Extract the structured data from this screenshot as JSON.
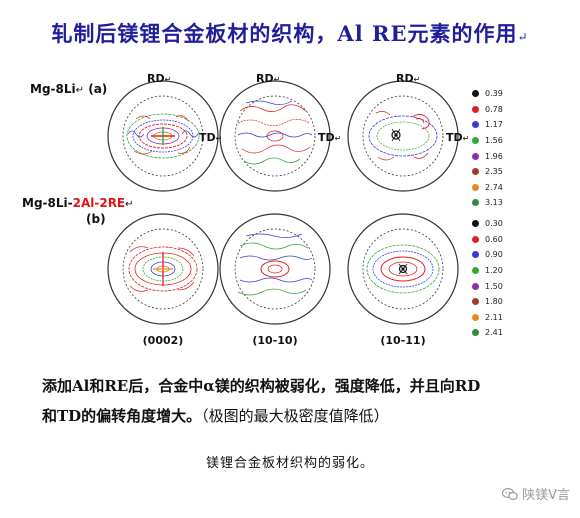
{
  "title": "轧制后镁锂合金板材的织构，Al RE元素的作用",
  "title_mark": "↵",
  "row_a": {
    "prefix": "Mg-8Li",
    "suffix": "(a)",
    "mark": "↵"
  },
  "row_b": {
    "prefix": "Mg-8Li-",
    "highlight": "2Al-2RE",
    "mark": "↵",
    "suffix": "(b)"
  },
  "rd_label": "RD",
  "td_label": "TD",
  "arrow_mark": "↵",
  "planes": [
    "(0002)",
    "(10-10)",
    "(10-11)"
  ],
  "legend_a": [
    {
      "value": "0.39",
      "color": "#111111"
    },
    {
      "value": "0.78",
      "color": "#e02020"
    },
    {
      "value": "1.17",
      "color": "#3a3ad8"
    },
    {
      "value": "1.56",
      "color": "#35a835"
    },
    {
      "value": "1.96",
      "color": "#8a2fa8"
    },
    {
      "value": "2.35",
      "color": "#a03a2a"
    },
    {
      "value": "2.74",
      "color": "#e08a20"
    },
    {
      "value": "3.13",
      "color": "#2e8a44"
    }
  ],
  "legend_b": [
    {
      "value": "0.30",
      "color": "#111111"
    },
    {
      "value": "0.60",
      "color": "#e02020"
    },
    {
      "value": "0.90",
      "color": "#3a3ad8"
    },
    {
      "value": "1.20",
      "color": "#35a835"
    },
    {
      "value": "1.50",
      "color": "#8a2fa8"
    },
    {
      "value": "1.80",
      "color": "#a03a2a"
    },
    {
      "value": "2.11",
      "color": "#e08a20"
    },
    {
      "value": "2.41",
      "color": "#2e8a44"
    }
  ],
  "description_line1": "添加Al和RE后，合金中α镁的织构被弱化，强度降低，并且向RD",
  "description_line2_bold": "和TD的偏转角度增大。",
  "description_line2_normal": "（极图的最大极密度值降低）",
  "caption": "镁锂合金板材织构的弱化。",
  "watermark": "陕镁V言"
}
